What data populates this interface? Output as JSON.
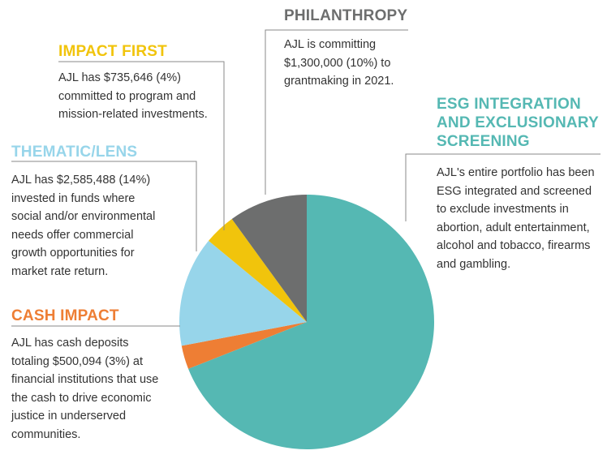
{
  "chart_data": {
    "type": "pie",
    "title": "",
    "slices": [
      {
        "key": "esg",
        "title": "ESG INTEGRATION AND EXCLUSIONARY SCREENING",
        "title_lines": [
          "ESG INTEGRATION",
          "AND EXCLUSIONARY",
          "SCREENING"
        ],
        "description_lines": [
          "AJL's entire portfolio has been",
          "ESG integrated and screened",
          "to exclude investments in",
          "abortion, adult entertainment,",
          "alcohol and tobacco, firearms",
          "and gambling."
        ],
        "share_percent": 69,
        "color": "#55B8B3"
      },
      {
        "key": "cash_impact",
        "title": "CASH IMPACT",
        "title_lines": [
          "CASH IMPACT"
        ],
        "description_lines": [
          "AJL has cash deposits",
          "totaling $500,094 (3%) at",
          "financial institutions that use",
          "the cash to drive economic",
          "justice in underserved",
          "communities."
        ],
        "share_percent": 3,
        "color": "#EE7E34"
      },
      {
        "key": "thematic",
        "title": "THEMATIC/LENS",
        "title_lines": [
          "THEMATIC/LENS"
        ],
        "description_lines": [
          "AJL has $2,585,488 (14%)",
          "invested in funds where",
          "social and/or environmental",
          "needs offer commercial",
          "growth opportunities for",
          "market rate return."
        ],
        "share_percent": 14,
        "color": "#97D5EA"
      },
      {
        "key": "impact_first",
        "title": "IMPACT FIRST",
        "title_lines": [
          "IMPACT FIRST"
        ],
        "description_lines": [
          "AJL has $735,646 (4%)",
          "committed to program and",
          "mission-related investments."
        ],
        "share_percent": 4,
        "color": "#F1C40C"
      },
      {
        "key": "philanthropy",
        "title": "PHILANTHROPY",
        "title_lines": [
          "PHILANTHROPY"
        ],
        "description_lines": [
          "AJL is committing",
          "$1,300,000 (10%) to",
          "grantmaking in 2021."
        ],
        "share_percent": 10,
        "color": "#6D6E6E"
      }
    ]
  }
}
